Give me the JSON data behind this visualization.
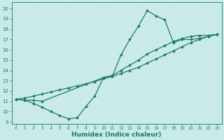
{
  "xlabel": "Humidex (Indice chaleur)",
  "bg_color": "#c8eae8",
  "grid_color": "#d4e8e5",
  "line_color": "#1a7a6e",
  "xlim": [
    -0.5,
    23.5
  ],
  "ylim": [
    8.8,
    20.6
  ],
  "xticks": [
    0,
    1,
    2,
    3,
    4,
    5,
    6,
    7,
    8,
    9,
    10,
    11,
    12,
    13,
    14,
    15,
    16,
    17,
    18,
    19,
    20,
    21,
    22,
    23
  ],
  "yticks": [
    9,
    10,
    11,
    12,
    13,
    14,
    15,
    16,
    17,
    18,
    19,
    20
  ],
  "curve1_x": [
    0,
    1,
    2,
    3,
    4,
    5,
    6,
    7,
    8,
    9,
    10,
    11,
    12,
    13,
    14,
    15,
    16,
    17,
    18,
    19,
    20,
    21,
    22,
    23
  ],
  "curve1_y": [
    11.2,
    11.1,
    10.8,
    10.4,
    10.0,
    9.6,
    9.3,
    9.4,
    10.5,
    11.5,
    13.3,
    13.4,
    15.5,
    17.0,
    18.3,
    19.8,
    19.3,
    18.9,
    16.7,
    17.0,
    17.0,
    17.1,
    17.3,
    17.5
  ],
  "curve2_x": [
    0,
    1,
    2,
    3,
    4,
    5,
    6,
    7,
    8,
    9,
    10,
    11,
    12,
    13,
    14,
    15,
    16,
    17,
    18,
    19,
    20,
    21,
    22,
    23
  ],
  "curve2_y": [
    11.2,
    11.3,
    11.5,
    11.7,
    11.9,
    12.1,
    12.3,
    12.5,
    12.7,
    12.9,
    13.2,
    13.4,
    13.7,
    14.0,
    14.3,
    14.7,
    15.1,
    15.5,
    15.9,
    16.3,
    16.7,
    17.0,
    17.3,
    17.5
  ],
  "curve3_x": [
    0,
    1,
    2,
    3,
    10,
    11,
    12,
    13,
    14,
    15,
    16,
    17,
    18,
    19,
    20,
    21,
    22,
    23
  ],
  "curve3_y": [
    11.2,
    11.1,
    11.1,
    11.0,
    13.3,
    13.5,
    14.0,
    14.5,
    15.0,
    15.6,
    16.0,
    16.4,
    16.8,
    17.1,
    17.3,
    17.4,
    17.4,
    17.5
  ]
}
